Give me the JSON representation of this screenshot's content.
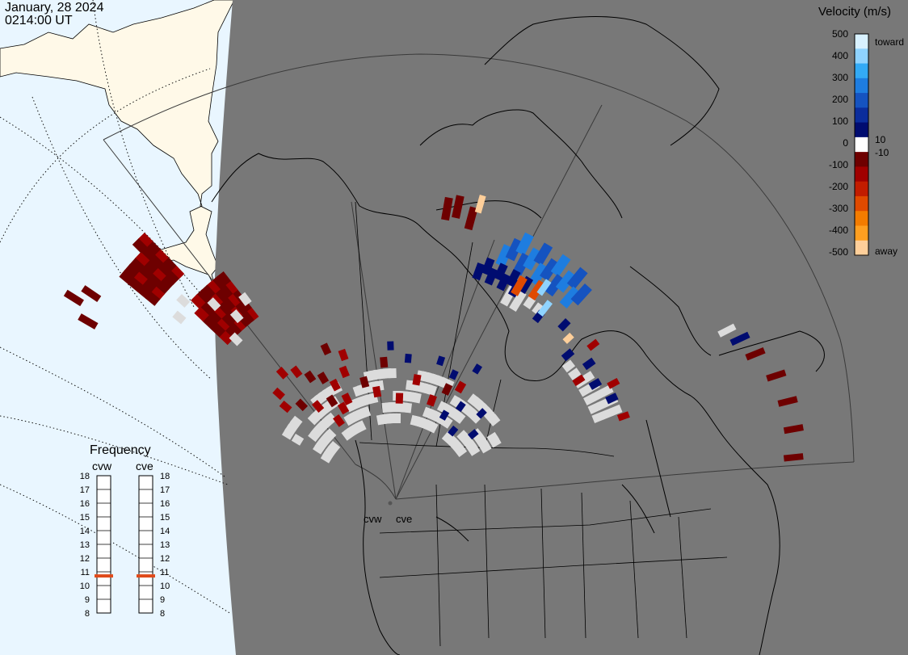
{
  "header": {
    "date": "January, 28 2024",
    "time": "0214:00 UT"
  },
  "velocity_scale": {
    "title": "Velocity (m/s)",
    "tick_labels": [
      "500",
      "400",
      "300",
      "200",
      "100",
      "10",
      "0",
      "-10",
      "-100",
      "-200",
      "-300",
      "-400",
      "-500"
    ],
    "toward_label": "toward",
    "away_label": "away",
    "colors": [
      "#d8f1ff",
      "#8fd3ff",
      "#33aaf5",
      "#1e7de0",
      "#1553c0",
      "#0b2d9c",
      "#000c70",
      "#ffffff",
      "#6e0000",
      "#a00000",
      "#c21c00",
      "#e04a00",
      "#f47c00",
      "#ff9f20",
      "#ffcf9a"
    ]
  },
  "frequency_panel": {
    "title": "Frequency",
    "radars": [
      {
        "name": "cvw",
        "frequency_mhz": 10.7
      },
      {
        "name": "cve",
        "frequency_mhz": 10.7
      }
    ],
    "tick_labels": [
      "18",
      "17",
      "16",
      "15",
      "14",
      "13",
      "12",
      "11",
      "10",
      "9",
      "8"
    ],
    "indicator_color": "#e04a1a"
  },
  "radar_sites": [
    {
      "label": "cvw"
    },
    {
      "label": "cve"
    }
  ],
  "map_colors": {
    "night": "#787878",
    "ocean_day": "#e9f6ff",
    "land_day": "#fff9e8",
    "coastline": "#000000",
    "ground_scatter": "#dcdcdc"
  },
  "icons": [
    "radar-site-icon"
  ]
}
